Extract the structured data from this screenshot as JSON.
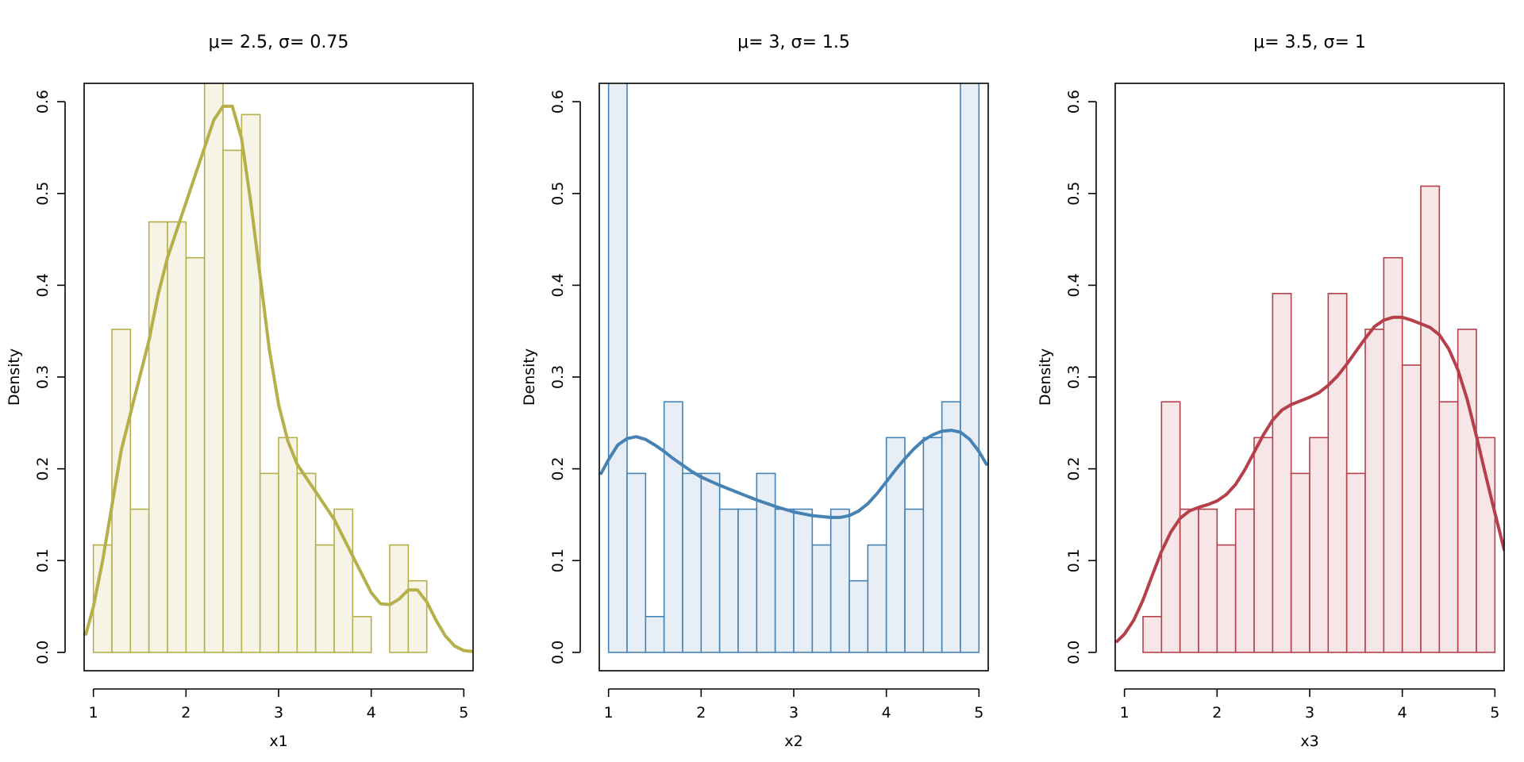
{
  "chart_data": [
    {
      "type": "histogram",
      "title": "μ= 2.5, σ= 0.75",
      "xlabel": "x1",
      "ylabel": "Density",
      "xlim": [
        0.9,
        5.1
      ],
      "ylim": [
        -0.02,
        0.62
      ],
      "x_ticks": [
        1,
        2,
        3,
        4,
        5
      ],
      "y_ticks": [
        0.0,
        0.1,
        0.2,
        0.3,
        0.4,
        0.5,
        0.6
      ],
      "stroke_color": "#b5b04a",
      "fill_color": "#f6f4e6",
      "bin_width": 0.2,
      "bins": [
        [
          1.0,
          0.117
        ],
        [
          1.2,
          0.352
        ],
        [
          1.4,
          0.156
        ],
        [
          1.6,
          0.469
        ],
        [
          1.8,
          0.469
        ],
        [
          2.0,
          0.43
        ],
        [
          2.2,
          0.625
        ],
        [
          2.4,
          0.547
        ],
        [
          2.6,
          0.586
        ],
        [
          2.8,
          0.195
        ],
        [
          3.0,
          0.234
        ],
        [
          3.2,
          0.195
        ],
        [
          3.4,
          0.117
        ],
        [
          3.6,
          0.156
        ],
        [
          3.8,
          0.039
        ],
        [
          4.0,
          0.0
        ],
        [
          4.2,
          0.117
        ],
        [
          4.4,
          0.078
        ]
      ],
      "density": [
        [
          0.92,
          0.02
        ],
        [
          1.0,
          0.05
        ],
        [
          1.1,
          0.1
        ],
        [
          1.2,
          0.16
        ],
        [
          1.3,
          0.22
        ],
        [
          1.4,
          0.26
        ],
        [
          1.5,
          0.3
        ],
        [
          1.6,
          0.34
        ],
        [
          1.7,
          0.39
        ],
        [
          1.8,
          0.43
        ],
        [
          1.9,
          0.46
        ],
        [
          2.0,
          0.49
        ],
        [
          2.1,
          0.52
        ],
        [
          2.2,
          0.55
        ],
        [
          2.3,
          0.58
        ],
        [
          2.4,
          0.595
        ],
        [
          2.5,
          0.595
        ],
        [
          2.6,
          0.56
        ],
        [
          2.7,
          0.49
        ],
        [
          2.8,
          0.41
        ],
        [
          2.9,
          0.33
        ],
        [
          3.0,
          0.27
        ],
        [
          3.1,
          0.23
        ],
        [
          3.2,
          0.205
        ],
        [
          3.3,
          0.19
        ],
        [
          3.4,
          0.175
        ],
        [
          3.5,
          0.16
        ],
        [
          3.6,
          0.145
        ],
        [
          3.7,
          0.125
        ],
        [
          3.8,
          0.105
        ],
        [
          3.9,
          0.085
        ],
        [
          4.0,
          0.065
        ],
        [
          4.1,
          0.053
        ],
        [
          4.2,
          0.052
        ],
        [
          4.3,
          0.058
        ],
        [
          4.4,
          0.068
        ],
        [
          4.5,
          0.068
        ],
        [
          4.6,
          0.055
        ],
        [
          4.7,
          0.035
        ],
        [
          4.8,
          0.018
        ],
        [
          4.9,
          0.007
        ],
        [
          5.0,
          0.002
        ],
        [
          5.1,
          0.001
        ]
      ]
    },
    {
      "type": "histogram",
      "title": "μ= 3, σ= 1.5",
      "xlabel": "x2",
      "ylabel": "Density",
      "xlim": [
        0.9,
        5.1
      ],
      "ylim": [
        -0.02,
        0.62
      ],
      "x_ticks": [
        1,
        2,
        3,
        4,
        5
      ],
      "y_ticks": [
        0.0,
        0.1,
        0.2,
        0.3,
        0.4,
        0.5,
        0.6
      ],
      "stroke_color": "#4682b4",
      "fill_color": "#e8eef6",
      "bin_width": 0.2,
      "bins": [
        [
          1.0,
          1.0
        ],
        [
          1.2,
          0.195
        ],
        [
          1.4,
          0.039
        ],
        [
          1.6,
          0.273
        ],
        [
          1.8,
          0.195
        ],
        [
          2.0,
          0.195
        ],
        [
          2.2,
          0.156
        ],
        [
          2.4,
          0.156
        ],
        [
          2.6,
          0.195
        ],
        [
          2.8,
          0.156
        ],
        [
          3.0,
          0.156
        ],
        [
          3.2,
          0.117
        ],
        [
          3.4,
          0.156
        ],
        [
          3.6,
          0.078
        ],
        [
          3.8,
          0.117
        ],
        [
          4.0,
          0.234
        ],
        [
          4.2,
          0.156
        ],
        [
          4.4,
          0.234
        ],
        [
          4.6,
          0.273
        ],
        [
          4.8,
          1.0
        ]
      ],
      "density": [
        [
          0.92,
          0.195
        ],
        [
          1.0,
          0.21
        ],
        [
          1.1,
          0.226
        ],
        [
          1.2,
          0.233
        ],
        [
          1.3,
          0.235
        ],
        [
          1.4,
          0.232
        ],
        [
          1.5,
          0.226
        ],
        [
          1.6,
          0.219
        ],
        [
          1.7,
          0.211
        ],
        [
          1.8,
          0.204
        ],
        [
          1.9,
          0.197
        ],
        [
          2.0,
          0.191
        ],
        [
          2.2,
          0.182
        ],
        [
          2.4,
          0.174
        ],
        [
          2.6,
          0.166
        ],
        [
          2.8,
          0.159
        ],
        [
          3.0,
          0.153
        ],
        [
          3.2,
          0.149
        ],
        [
          3.4,
          0.147
        ],
        [
          3.5,
          0.147
        ],
        [
          3.6,
          0.149
        ],
        [
          3.7,
          0.154
        ],
        [
          3.8,
          0.162
        ],
        [
          3.9,
          0.173
        ],
        [
          4.0,
          0.186
        ],
        [
          4.1,
          0.199
        ],
        [
          4.2,
          0.211
        ],
        [
          4.3,
          0.222
        ],
        [
          4.4,
          0.231
        ],
        [
          4.5,
          0.237
        ],
        [
          4.6,
          0.241
        ],
        [
          4.7,
          0.242
        ],
        [
          4.8,
          0.24
        ],
        [
          4.9,
          0.232
        ],
        [
          5.0,
          0.219
        ],
        [
          5.08,
          0.205
        ]
      ]
    },
    {
      "type": "histogram",
      "title": "μ= 3.5, σ= 1",
      "xlabel": "x3",
      "ylabel": "Density",
      "xlim": [
        0.9,
        5.1
      ],
      "ylim": [
        -0.02,
        0.62
      ],
      "x_ticks": [
        1,
        2,
        3,
        4,
        5
      ],
      "y_ticks": [
        0.0,
        0.1,
        0.2,
        0.3,
        0.4,
        0.5,
        0.6
      ],
      "stroke_color": "#b5404a",
      "fill_color": "#f6e6e8",
      "bin_width": 0.2,
      "bins": [
        [
          1.0,
          0.0
        ],
        [
          1.2,
          0.039
        ],
        [
          1.4,
          0.273
        ],
        [
          1.6,
          0.156
        ],
        [
          1.8,
          0.156
        ],
        [
          2.0,
          0.117
        ],
        [
          2.2,
          0.156
        ],
        [
          2.4,
          0.234
        ],
        [
          2.6,
          0.391
        ],
        [
          2.8,
          0.195
        ],
        [
          3.0,
          0.234
        ],
        [
          3.2,
          0.391
        ],
        [
          3.4,
          0.195
        ],
        [
          3.6,
          0.352
        ],
        [
          3.8,
          0.43
        ],
        [
          4.0,
          0.313
        ],
        [
          4.2,
          0.508
        ],
        [
          4.4,
          0.273
        ],
        [
          4.6,
          0.352
        ],
        [
          4.8,
          0.234
        ]
      ],
      "density": [
        [
          0.92,
          0.012
        ],
        [
          1.0,
          0.02
        ],
        [
          1.1,
          0.035
        ],
        [
          1.2,
          0.057
        ],
        [
          1.3,
          0.084
        ],
        [
          1.4,
          0.11
        ],
        [
          1.5,
          0.131
        ],
        [
          1.6,
          0.146
        ],
        [
          1.7,
          0.154
        ],
        [
          1.8,
          0.158
        ],
        [
          1.9,
          0.161
        ],
        [
          2.0,
          0.165
        ],
        [
          2.1,
          0.172
        ],
        [
          2.2,
          0.183
        ],
        [
          2.3,
          0.199
        ],
        [
          2.4,
          0.218
        ],
        [
          2.5,
          0.237
        ],
        [
          2.6,
          0.253
        ],
        [
          2.7,
          0.264
        ],
        [
          2.8,
          0.27
        ],
        [
          2.9,
          0.274
        ],
        [
          3.0,
          0.278
        ],
        [
          3.1,
          0.283
        ],
        [
          3.2,
          0.291
        ],
        [
          3.3,
          0.301
        ],
        [
          3.4,
          0.314
        ],
        [
          3.5,
          0.328
        ],
        [
          3.6,
          0.342
        ],
        [
          3.7,
          0.355
        ],
        [
          3.8,
          0.362
        ],
        [
          3.9,
          0.365
        ],
        [
          4.0,
          0.365
        ],
        [
          4.1,
          0.362
        ],
        [
          4.2,
          0.358
        ],
        [
          4.3,
          0.354
        ],
        [
          4.4,
          0.346
        ],
        [
          4.5,
          0.331
        ],
        [
          4.6,
          0.308
        ],
        [
          4.7,
          0.276
        ],
        [
          4.8,
          0.236
        ],
        [
          4.9,
          0.193
        ],
        [
          5.0,
          0.152
        ],
        [
          5.1,
          0.112
        ]
      ]
    }
  ]
}
